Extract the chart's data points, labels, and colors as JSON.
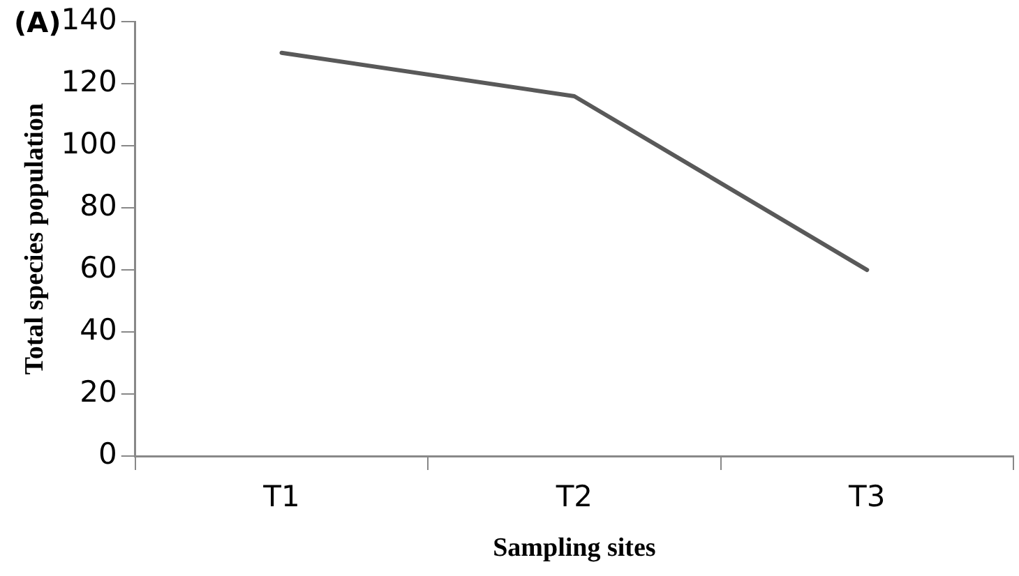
{
  "chart_data": {
    "type": "line",
    "title": "(A)",
    "xlabel": "Sampling sites",
    "ylabel": "Total species population",
    "categories": [
      "T1",
      "T2",
      "T3"
    ],
    "series": [
      {
        "color": "#595959",
        "values": [
          130,
          116,
          60
        ]
      }
    ],
    "ylim": [
      0,
      140
    ],
    "yticks": [
      0,
      20,
      40,
      60,
      80,
      100,
      120,
      140
    ],
    "grid": false,
    "legend": false,
    "marker": "none",
    "line_style": "solid"
  }
}
